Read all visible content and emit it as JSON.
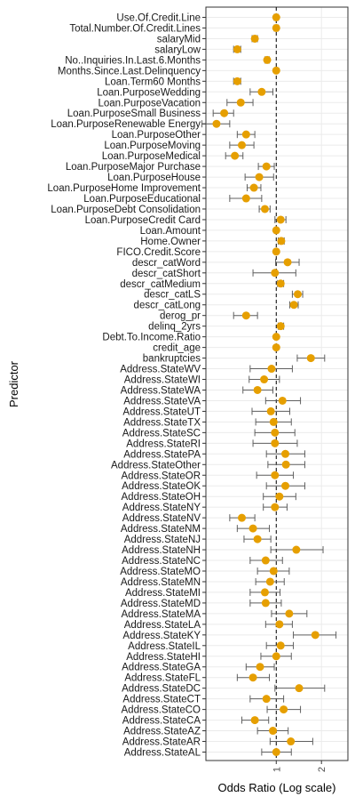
{
  "chart_data": {
    "type": "scatter",
    "xlabel": "Odds Ratio (Log scale)",
    "ylabel": "Predictor",
    "x_scale": "log",
    "x_ticks": [
      1,
      2
    ],
    "x_tick_labels": [
      "1",
      "2"
    ],
    "xlim": [
      0.34,
      3.0
    ],
    "reference_line": 1,
    "grid": true,
    "point_color": "#E69F00",
    "errorbar_color": "#606060",
    "categories": [
      "Use.Of.Credit.Line",
      "Total.Number.Of.Credit.Lines",
      "salaryMid",
      "salaryLow",
      "No..Inquiries.In.Last.6.Months",
      "Months.Since.Last.Delinquency",
      "Loan.Term60 Months",
      "Loan.PurposeWedding",
      "Loan.PurposeVacation",
      "Loan.PurposeSmall Business",
      "Loan.PurposeRenewable Energy",
      "Loan.PurposeOther",
      "Loan.PurposeMoving",
      "Loan.PurposeMedical",
      "Loan.PurposeMajor Purchase",
      "Loan.PurposeHouse",
      "Loan.PurposeHome Improvement",
      "Loan.PurposeEducational",
      "Loan.PurposeDebt Consolidation",
      "Loan.PurposeCredit Card",
      "Loan.Amount",
      "Home.Owner",
      "FICO.Credit.Score",
      "descr_catWord",
      "descr_catShort",
      "descr_catMedium",
      "descr_catLS",
      "descr_catLong",
      "derog_pr",
      "delinq_2yrs",
      "Debt.To.Income.Ratio",
      "credit_age",
      "bankruptcies",
      "Address.StateWV",
      "Address.StateWI",
      "Address.StateWA",
      "Address.StateVA",
      "Address.StateUT",
      "Address.StateTX",
      "Address.StateSC",
      "Address.StateRI",
      "Address.StatePA",
      "Address.StateOther",
      "Address.StateOR",
      "Address.StateOK",
      "Address.StateOH",
      "Address.StateNY",
      "Address.StateNV",
      "Address.StateNM",
      "Address.StateNJ",
      "Address.StateNH",
      "Address.StateNC",
      "Address.StateMO",
      "Address.StateMN",
      "Address.StateMI",
      "Address.StateMD",
      "Address.StateMA",
      "Address.StateLA",
      "Address.StateKY",
      "Address.StateIL",
      "Address.StateHI",
      "Address.StateGA",
      "Address.StateFL",
      "Address.StateDC",
      "Address.StateCT",
      "Address.StateCO",
      "Address.StateCA",
      "Address.StateAZ",
      "Address.StateAR",
      "Address.StateAL"
    ],
    "odds_ratio": [
      1.0,
      1.0,
      0.72,
      0.55,
      0.87,
      1.0,
      0.55,
      0.8,
      0.58,
      0.45,
      0.4,
      0.63,
      0.59,
      0.53,
      0.86,
      0.77,
      0.71,
      0.63,
      0.84,
      1.07,
      1.0,
      1.08,
      1.0,
      1.19,
      0.98,
      1.07,
      1.39,
      1.31,
      0.63,
      1.07,
      1.0,
      1.0,
      1.7,
      0.93,
      0.83,
      0.75,
      1.1,
      0.92,
      0.96,
      0.98,
      0.98,
      1.15,
      1.16,
      0.98,
      1.15,
      1.05,
      0.98,
      0.59,
      0.7,
      0.75,
      1.36,
      0.85,
      0.96,
      0.91,
      0.84,
      0.85,
      1.22,
      1.05,
      1.82,
      1.07,
      1.0,
      0.78,
      0.7,
      1.42,
      0.86,
      1.12,
      0.72,
      0.95,
      1.25,
      1.0
    ],
    "ci_lower": [
      0.97,
      0.97,
      0.69,
      0.52,
      0.84,
      0.98,
      0.52,
      0.67,
      0.47,
      0.38,
      0.32,
      0.55,
      0.49,
      0.46,
      0.76,
      0.62,
      0.64,
      0.49,
      0.77,
      0.98,
      0.98,
      1.03,
      0.98,
      0.99,
      0.7,
      1.02,
      1.28,
      1.23,
      0.52,
      1.03,
      0.98,
      0.98,
      1.38,
      0.67,
      0.66,
      0.6,
      0.85,
      0.69,
      0.73,
      0.72,
      0.7,
      0.86,
      0.88,
      0.74,
      0.86,
      0.82,
      0.82,
      0.49,
      0.55,
      0.61,
      0.92,
      0.67,
      0.75,
      0.73,
      0.67,
      0.67,
      0.93,
      0.85,
      1.3,
      0.86,
      0.79,
      0.63,
      0.55,
      0.98,
      0.67,
      0.87,
      0.59,
      0.75,
      0.91,
      0.8
    ],
    "ci_upper": [
      1.03,
      1.03,
      0.75,
      0.58,
      0.9,
      1.02,
      0.58,
      0.95,
      0.7,
      0.52,
      0.49,
      0.72,
      0.71,
      0.6,
      0.97,
      0.96,
      0.79,
      0.8,
      0.91,
      1.16,
      1.02,
      1.13,
      1.02,
      1.42,
      1.35,
      1.12,
      1.5,
      1.4,
      0.75,
      1.12,
      1.02,
      1.02,
      2.1,
      1.28,
      1.05,
      0.95,
      1.45,
      1.23,
      1.26,
      1.33,
      1.38,
      1.55,
      1.55,
      1.3,
      1.55,
      1.35,
      1.18,
      0.72,
      0.9,
      0.92,
      2.05,
      1.1,
      1.22,
      1.13,
      1.06,
      1.08,
      1.6,
      1.28,
      2.5,
      1.3,
      1.26,
      0.97,
      0.9,
      2.1,
      1.12,
      1.45,
      0.89,
      1.2,
      1.75,
      1.26
    ]
  }
}
